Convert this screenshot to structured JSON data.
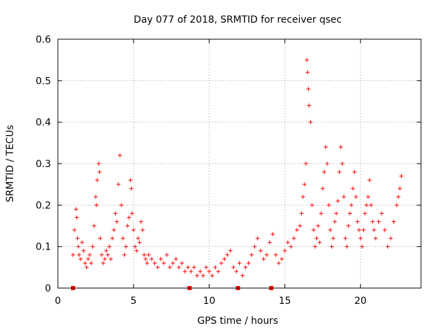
{
  "chart_data": {
    "type": "scatter",
    "title": "Day 077 of 2018, SRMTID for receiver qsec",
    "xlabel": "GPS time / hours",
    "ylabel": "SRMTID / TECUs",
    "xlim": [
      0,
      24
    ],
    "ylim": [
      0,
      0.6
    ],
    "x_ticks": [
      0,
      5,
      10,
      15,
      20
    ],
    "x_tick_labels": [
      "0",
      "5",
      "10",
      "15",
      "20"
    ],
    "y_ticks": [
      0,
      0.1,
      0.2,
      0.3,
      0.4,
      0.5,
      0.6
    ],
    "y_tick_labels": [
      "0",
      "0.1",
      "0.2",
      "0.3",
      "0.4",
      "0.5",
      "0.6"
    ],
    "grid": true,
    "marker": "plus",
    "color": "#ff0000",
    "series": [
      {
        "name": "SRMTID",
        "x": [
          1.0,
          1.1,
          1.2,
          1.25,
          1.3,
          1.35,
          1.4,
          1.5,
          1.6,
          1.7,
          1.8,
          1.9,
          2.0,
          2.1,
          2.2,
          2.3,
          2.4,
          2.5,
          2.55,
          2.6,
          2.7,
          2.75,
          2.8,
          2.9,
          3.0,
          3.1,
          3.2,
          3.3,
          3.4,
          3.5,
          3.6,
          3.7,
          3.8,
          3.9,
          4.0,
          4.1,
          4.2,
          4.3,
          4.4,
          4.5,
          4.6,
          4.7,
          4.8,
          4.85,
          4.9,
          5.0,
          5.1,
          5.2,
          5.3,
          5.4,
          5.5,
          5.6,
          5.7,
          5.8,
          5.9,
          6.0,
          6.2,
          6.4,
          6.6,
          6.8,
          7.0,
          7.2,
          7.4,
          7.6,
          7.8,
          8.0,
          8.2,
          8.4,
          8.6,
          8.8,
          9.0,
          9.2,
          9.4,
          9.6,
          9.8,
          10.0,
          10.2,
          10.4,
          10.6,
          10.8,
          11.0,
          11.2,
          11.4,
          11.6,
          11.8,
          12.0,
          12.2,
          12.4,
          12.6,
          12.8,
          13.0,
          13.2,
          13.4,
          13.6,
          13.8,
          14.0,
          14.2,
          14.4,
          14.6,
          14.8,
          15.0,
          15.2,
          15.4,
          15.6,
          15.8,
          16.0,
          16.1,
          16.2,
          16.3,
          16.4,
          16.45,
          16.5,
          16.55,
          16.6,
          16.7,
          16.8,
          16.9,
          17.0,
          17.1,
          17.2,
          17.3,
          17.4,
          17.5,
          17.6,
          17.7,
          17.8,
          17.9,
          18.0,
          18.1,
          18.2,
          18.3,
          18.4,
          18.5,
          18.6,
          18.7,
          18.8,
          18.9,
          19.0,
          19.1,
          19.2,
          19.3,
          19.4,
          19.5,
          19.6,
          19.7,
          19.8,
          19.9,
          20.0,
          20.1,
          20.2,
          20.3,
          20.4,
          20.5,
          20.6,
          20.7,
          20.8,
          20.9,
          21.0,
          21.2,
          21.4,
          21.6,
          21.8,
          22.0,
          22.2,
          22.4,
          22.5,
          22.6,
          22.7
        ],
        "y": [
          0.08,
          0.14,
          0.19,
          0.17,
          0.12,
          0.1,
          0.08,
          0.07,
          0.11,
          0.09,
          0.06,
          0.05,
          0.07,
          0.08,
          0.06,
          0.1,
          0.15,
          0.22,
          0.2,
          0.26,
          0.3,
          0.28,
          0.12,
          0.08,
          0.06,
          0.07,
          0.09,
          0.08,
          0.1,
          0.07,
          0.12,
          0.14,
          0.18,
          0.16,
          0.25,
          0.32,
          0.2,
          0.12,
          0.08,
          0.1,
          0.15,
          0.17,
          0.26,
          0.24,
          0.18,
          0.14,
          0.1,
          0.09,
          0.12,
          0.11,
          0.16,
          0.14,
          0.08,
          0.07,
          0.06,
          0.08,
          0.07,
          0.06,
          0.05,
          0.07,
          0.06,
          0.08,
          0.05,
          0.06,
          0.07,
          0.05,
          0.06,
          0.04,
          0.05,
          0.04,
          0.05,
          0.03,
          0.04,
          0.03,
          0.05,
          0.04,
          0.03,
          0.05,
          0.04,
          0.06,
          0.07,
          0.08,
          0.09,
          0.05,
          0.04,
          0.06,
          0.03,
          0.05,
          0.06,
          0.08,
          0.1,
          0.12,
          0.09,
          0.07,
          0.08,
          0.11,
          0.13,
          0.08,
          0.06,
          0.07,
          0.09,
          0.11,
          0.1,
          0.12,
          0.14,
          0.15,
          0.18,
          0.22,
          0.25,
          0.3,
          0.55,
          0.52,
          0.48,
          0.44,
          0.4,
          0.2,
          0.14,
          0.1,
          0.12,
          0.15,
          0.11,
          0.18,
          0.24,
          0.28,
          0.34,
          0.3,
          0.2,
          0.14,
          0.1,
          0.12,
          0.16,
          0.18,
          0.21,
          0.28,
          0.34,
          0.3,
          0.22,
          0.12,
          0.1,
          0.15,
          0.18,
          0.2,
          0.24,
          0.28,
          0.22,
          0.16,
          0.14,
          0.12,
          0.1,
          0.14,
          0.18,
          0.2,
          0.22,
          0.26,
          0.2,
          0.16,
          0.14,
          0.12,
          0.16,
          0.18,
          0.14,
          0.1,
          0.12,
          0.16,
          0.2,
          0.22,
          0.24,
          0.27
        ]
      }
    ],
    "markers_on_x_axis": [
      {
        "x": 1.0,
        "y": 0
      },
      {
        "x": 8.7,
        "y": 0
      },
      {
        "x": 11.9,
        "y": 0
      },
      {
        "x": 14.1,
        "y": 0
      }
    ]
  }
}
